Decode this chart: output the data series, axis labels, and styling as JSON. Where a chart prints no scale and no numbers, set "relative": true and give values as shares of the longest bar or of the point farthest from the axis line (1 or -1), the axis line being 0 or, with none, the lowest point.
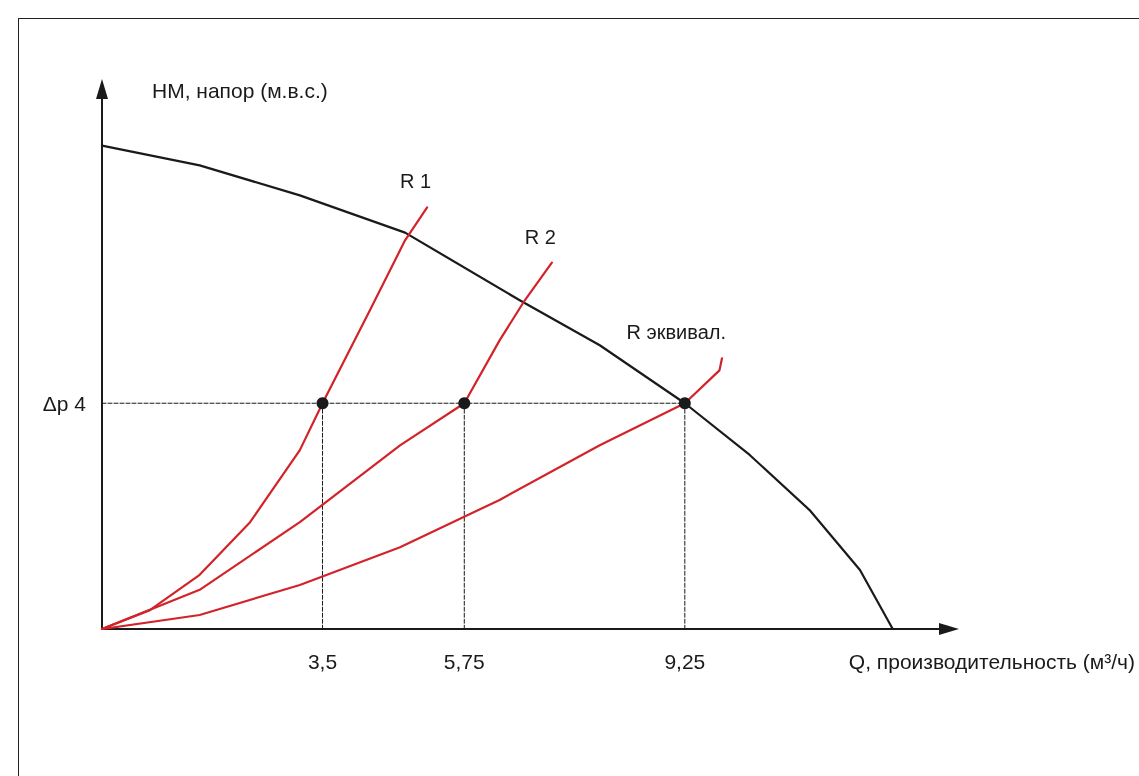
{
  "chart_data": {
    "type": "line",
    "relative": true,
    "xlabel": "Q, производительность (м³/ч)",
    "ylabel": "НМ, напор (м.в.с.)",
    "xlim": [
      0,
      13.3
    ],
    "xticks": [
      {
        "value": 3.5,
        "label": "3,5"
      },
      {
        "value": 5.75,
        "label": "5,75"
      },
      {
        "value": 9.25,
        "label": "9,25"
      }
    ],
    "grid": false,
    "marker": "none",
    "line_style": "solid",
    "annotations": [
      {
        "text": "Δp 4",
        "x": 0,
        "y": 0.467
      }
    ],
    "series": [
      {
        "color": "#1a1a1a",
        "x": [
          0,
          1.55,
          3.14,
          4.81,
          6.63,
          7.9,
          9.25,
          10.28,
          11.23,
          12.03,
          12.55
        ],
        "values": [
          1,
          0.959,
          0.897,
          0.82,
          0.68,
          0.587,
          0.467,
          0.36,
          0.246,
          0.122,
          0
        ]
      },
      {
        "name": "R 1",
        "color": "#d2232a",
        "x": [
          0,
          0.76,
          1.55,
          2.35,
          3.14,
          3.5,
          4.25,
          4.81,
          5.16
        ],
        "values": [
          0,
          0.039,
          0.112,
          0.221,
          0.37,
          0.467,
          0.659,
          0.804,
          0.872
        ]
      },
      {
        "name": "R 2",
        "color": "#d2232a",
        "x": [
          0,
          1.55,
          3.14,
          4.73,
          5.75,
          6.31,
          6.71,
          7.14
        ],
        "values": [
          0,
          0.081,
          0.221,
          0.38,
          0.467,
          0.597,
          0.68,
          0.758
        ]
      },
      {
        "name": "R эквивал.",
        "color": "#d2232a",
        "x": [
          0,
          1.55,
          3.14,
          4.73,
          6.31,
          7.9,
          9.25,
          9.8,
          9.84
        ],
        "values": [
          0,
          0.029,
          0.091,
          0.169,
          0.267,
          0.38,
          0.467,
          0.535,
          0.56
        ]
      },
      {
        "color": "#1a1a1a",
        "line_style": "dashed",
        "x": [
          0,
          9.25
        ],
        "values": [
          0.467,
          0.467
        ]
      },
      {
        "color": "#1a1a1a",
        "line_style": "dashed",
        "x": [
          3.5,
          3.5
        ],
        "values": [
          0.467,
          0
        ]
      },
      {
        "color": "#1a1a1a",
        "line_style": "dashed",
        "x": [
          5.75,
          5.75
        ],
        "values": [
          0.467,
          0
        ]
      },
      {
        "color": "#1a1a1a",
        "line_style": "dashed",
        "x": [
          9.25,
          9.25
        ],
        "values": [
          0.467,
          0
        ]
      },
      {
        "type": "scatter",
        "marker": "circle",
        "color": "#1a1a1a",
        "x": [
          3.5,
          5.75,
          9.25
        ],
        "values": [
          0.467,
          0.467,
          0.467
        ]
      }
    ]
  }
}
